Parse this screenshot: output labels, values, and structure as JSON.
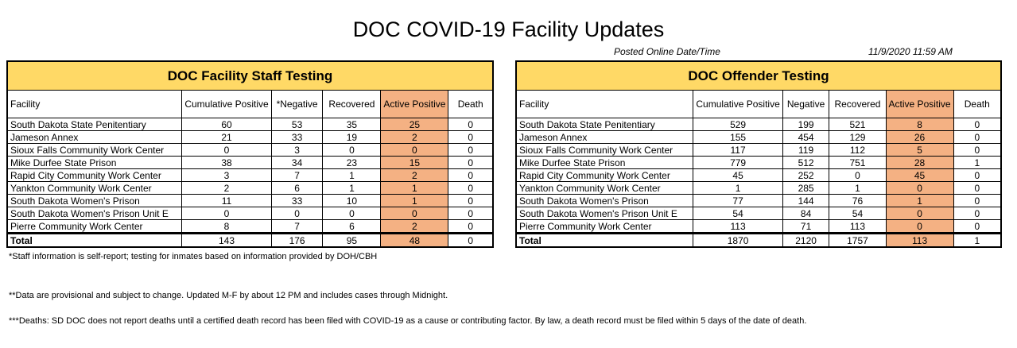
{
  "title": "DOC COVID-19 Facility Updates",
  "posted_label": "Posted Online Date/Time",
  "posted_value": "11/9/2020 11:59 AM",
  "staff": {
    "header": "DOC Facility Staff Testing",
    "columns": [
      "Facility",
      "Cumulative Positive",
      "*Negative",
      "Recovered",
      "Active Positive",
      "Death"
    ],
    "rows": [
      [
        "South Dakota State Penitentiary",
        "60",
        "53",
        "35",
        "25",
        "0"
      ],
      [
        "Jameson Annex",
        "21",
        "33",
        "19",
        "2",
        "0"
      ],
      [
        "Sioux Falls Community Work Center",
        "0",
        "3",
        "0",
        "0",
        "0"
      ],
      [
        "Mike Durfee State Prison",
        "38",
        "34",
        "23",
        "15",
        "0"
      ],
      [
        "Rapid City Community Work Center",
        "3",
        "7",
        "1",
        "2",
        "0"
      ],
      [
        "Yankton Community Work Center",
        "2",
        "6",
        "1",
        "1",
        "0"
      ],
      [
        "South Dakota Women's Prison",
        "11",
        "33",
        "10",
        "1",
        "0"
      ],
      [
        "South Dakota Women's Prison Unit E",
        "0",
        "0",
        "0",
        "0",
        "0"
      ],
      [
        "Pierre Community Work Center",
        "8",
        "7",
        "6",
        "2",
        "0"
      ]
    ],
    "total": [
      "Total",
      "143",
      "176",
      "95",
      "48",
      "0"
    ]
  },
  "offender": {
    "header": "DOC Offender Testing",
    "columns": [
      "Facility",
      "Cumulative Positive",
      "Negative",
      "Recovered",
      "Active Positive",
      "Death"
    ],
    "rows": [
      [
        "South Dakota State Penitentiary",
        "529",
        "199",
        "521",
        "8",
        "0"
      ],
      [
        "Jameson Annex",
        "155",
        "454",
        "129",
        "26",
        "0"
      ],
      [
        "Sioux Falls Community Work Center",
        "117",
        "119",
        "112",
        "5",
        "0"
      ],
      [
        "Mike Durfee State Prison",
        "779",
        "512",
        "751",
        "28",
        "1"
      ],
      [
        "Rapid City Community Work Center",
        "45",
        "252",
        "0",
        "45",
        "0"
      ],
      [
        "Yankton Community Work Center",
        "1",
        "285",
        "1",
        "0",
        "0"
      ],
      [
        "South Dakota Women's Prison",
        "77",
        "144",
        "76",
        "1",
        "0"
      ],
      [
        "South Dakota Women's Prison Unit E",
        "54",
        "84",
        "54",
        "0",
        "0"
      ],
      [
        "Pierre Community Work Center",
        "113",
        "71",
        "113",
        "0",
        "0"
      ]
    ],
    "total": [
      "Total",
      "1870",
      "2120",
      "1757",
      "113",
      "1"
    ]
  },
  "notes": [
    "*Staff information is self-report; testing for inmates based on information provided by DOH/CBH",
    "**Data are provisional and subject to change.  Updated M-F by about 12 PM and includes cases through Midnight.",
    "***Deaths: SD DOC does not report deaths until a certified death record has been filed with COVID-19 as a cause or contributing factor.  By law, a death record must be filed within 5 days of the date of death."
  ],
  "colors": {
    "header_bg": "#ffd966",
    "active_bg": "#f4b183"
  }
}
